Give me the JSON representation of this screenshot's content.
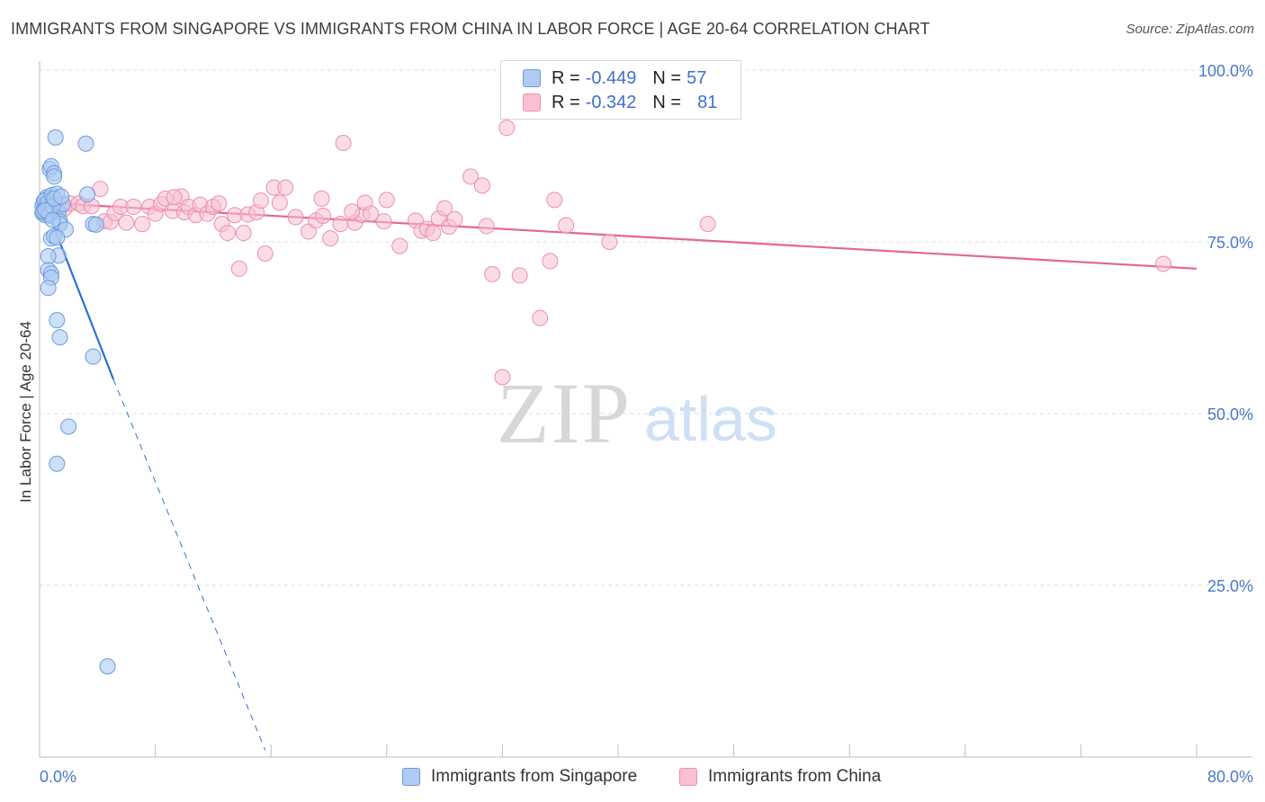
{
  "header": {
    "title": "IMMIGRANTS FROM SINGAPORE VS IMMIGRANTS FROM CHINA IN LABOR FORCE | AGE 20-64 CORRELATION CHART",
    "source": "Source: ZipAtlas.com"
  },
  "watermark": {
    "zip": "ZIP",
    "atlas": "atlas"
  },
  "legend": {
    "singapore": {
      "r_label": "R =",
      "r_value": "-0.449",
      "n_label": "N =",
      "n_value": "57"
    },
    "china": {
      "r_label": "R =",
      "r_value": "-0.342",
      "n_label": "N =",
      "n_value": "81"
    }
  },
  "colors": {
    "singapore_fill": "#aecbf2",
    "singapore_stroke": "#6c9ae0",
    "singapore_line": "#2f6fd6",
    "china_fill": "#f8c0d2",
    "china_stroke": "#ec8fae",
    "china_line": "#e4678f",
    "axis_text": "#4a78cc",
    "grid": "#dcdcdc"
  },
  "chart_data": {
    "type": "scatter",
    "title": "IMMIGRANTS FROM SINGAPORE VS IMMIGRANTS FROM CHINA IN LABOR FORCE | AGE 20-64 CORRELATION CHART",
    "xlabel": "",
    "ylabel": "In Labor Force | Age 20-64",
    "xlim": [
      0,
      80
    ],
    "ylim": [
      0,
      100
    ],
    "x_tick_labels": [
      {
        "value": 0,
        "label": "0.0%"
      },
      {
        "value": 80,
        "label": "80.0%"
      }
    ],
    "y_tick_labels": [
      {
        "value": 100,
        "label": "100.0%"
      },
      {
        "value": 75,
        "label": "75.0%"
      },
      {
        "value": 50,
        "label": "50.0%"
      },
      {
        "value": 25,
        "label": "25.0%"
      }
    ],
    "series": [
      {
        "name": "Immigrants from Singapore",
        "r": -0.449,
        "n": 57,
        "trend_solid": [
          [
            0.2,
            81.4
          ],
          [
            5.1,
            55.0
          ]
        ],
        "trend_dashed": [
          [
            5.1,
            55.0
          ],
          [
            15.6,
            1.0
          ]
        ],
        "points": [
          [
            0.3,
            79.8
          ],
          [
            0.4,
            80.5
          ],
          [
            0.2,
            79.2
          ],
          [
            0.5,
            81.2
          ],
          [
            0.6,
            80.1
          ],
          [
            0.3,
            80.9
          ],
          [
            0.7,
            79.5
          ],
          [
            0.4,
            78.9
          ],
          [
            0.8,
            80.3
          ],
          [
            0.5,
            81.5
          ],
          [
            0.9,
            79.9
          ],
          [
            1.0,
            80.6
          ],
          [
            0.6,
            79.1
          ],
          [
            0.2,
            80.2
          ],
          [
            1.1,
            79.7
          ],
          [
            0.35,
            81.0
          ],
          [
            0.75,
            78.8
          ],
          [
            0.45,
            80.0
          ],
          [
            0.25,
            79.4
          ],
          [
            0.55,
            80.7
          ],
          [
            0.85,
            81.8
          ],
          [
            1.2,
            82.0
          ],
          [
            1.3,
            79.3
          ],
          [
            0.65,
            79.0
          ],
          [
            1.6,
            80.5
          ],
          [
            0.9,
            80.2
          ],
          [
            0.4,
            79.6
          ],
          [
            1.0,
            81.3
          ],
          [
            1.5,
            81.6
          ],
          [
            1.4,
            78.0
          ],
          [
            0.7,
            85.6
          ],
          [
            0.8,
            86.0
          ],
          [
            1.0,
            85.0
          ],
          [
            1.0,
            84.5
          ],
          [
            1.1,
            90.2
          ],
          [
            3.2,
            89.3
          ],
          [
            3.3,
            81.9
          ],
          [
            3.7,
            77.6
          ],
          [
            3.9,
            77.5
          ],
          [
            1.4,
            77.6
          ],
          [
            1.8,
            76.8
          ],
          [
            0.8,
            75.5
          ],
          [
            1.0,
            75.8
          ],
          [
            1.2,
            75.6
          ],
          [
            1.3,
            73.0
          ],
          [
            0.6,
            72.9
          ],
          [
            0.6,
            70.9
          ],
          [
            0.8,
            70.4
          ],
          [
            0.8,
            69.8
          ],
          [
            0.6,
            68.3
          ],
          [
            1.2,
            63.6
          ],
          [
            1.4,
            61.1
          ],
          [
            3.7,
            58.3
          ],
          [
            2.0,
            48.1
          ],
          [
            1.2,
            42.7
          ],
          [
            4.7,
            13.2
          ],
          [
            0.9,
            78.2
          ]
        ]
      },
      {
        "name": "Immigrants from China",
        "r": -0.342,
        "n": 81,
        "trend_solid": [
          [
            0.3,
            80.7
          ],
          [
            80.0,
            71.1
          ]
        ],
        "points": [
          [
            0.3,
            80.2
          ],
          [
            0.6,
            80.4
          ],
          [
            0.9,
            80.7
          ],
          [
            1.3,
            80.1
          ],
          [
            1.7,
            79.8
          ],
          [
            2.1,
            80.6
          ],
          [
            2.7,
            80.6
          ],
          [
            3.0,
            80.2
          ],
          [
            3.6,
            80.2
          ],
          [
            4.2,
            82.7
          ],
          [
            4.5,
            78.0
          ],
          [
            4.9,
            77.9
          ],
          [
            5.2,
            79.2
          ],
          [
            5.6,
            80.1
          ],
          [
            6.0,
            77.8
          ],
          [
            6.5,
            80.1
          ],
          [
            7.1,
            77.6
          ],
          [
            7.6,
            80.1
          ],
          [
            8.0,
            79.1
          ],
          [
            8.4,
            80.5
          ],
          [
            8.7,
            81.3
          ],
          [
            9.2,
            79.5
          ],
          [
            9.8,
            81.6
          ],
          [
            10.0,
            79.3
          ],
          [
            10.3,
            80.1
          ],
          [
            10.8,
            78.9
          ],
          [
            11.1,
            80.4
          ],
          [
            11.6,
            79.1
          ],
          [
            12.0,
            80.1
          ],
          [
            12.6,
            77.6
          ],
          [
            12.4,
            80.6
          ],
          [
            13.0,
            76.3
          ],
          [
            13.5,
            78.9
          ],
          [
            14.1,
            76.3
          ],
          [
            14.4,
            79.0
          ],
          [
            15.0,
            79.3
          ],
          [
            15.6,
            73.3
          ],
          [
            13.8,
            71.1
          ],
          [
            16.2,
            82.9
          ],
          [
            16.6,
            80.7
          ],
          [
            17.0,
            82.9
          ],
          [
            17.7,
            78.6
          ],
          [
            18.6,
            76.5
          ],
          [
            19.1,
            78.1
          ],
          [
            19.5,
            81.3
          ],
          [
            20.1,
            75.5
          ],
          [
            20.8,
            77.6
          ],
          [
            21.8,
            77.8
          ],
          [
            22.3,
            78.9
          ],
          [
            22.5,
            80.7
          ],
          [
            22.9,
            79.1
          ],
          [
            23.8,
            78.0
          ],
          [
            24.9,
            74.4
          ],
          [
            26.0,
            78.1
          ],
          [
            26.4,
            76.6
          ],
          [
            26.8,
            76.9
          ],
          [
            27.2,
            76.3
          ],
          [
            27.6,
            78.4
          ],
          [
            28.0,
            79.9
          ],
          [
            28.3,
            77.2
          ],
          [
            28.7,
            78.3
          ],
          [
            29.8,
            84.5
          ],
          [
            30.6,
            83.2
          ],
          [
            30.9,
            77.3
          ],
          [
            31.3,
            70.3
          ],
          [
            32.3,
            91.6
          ],
          [
            33.2,
            70.1
          ],
          [
            34.6,
            63.9
          ],
          [
            35.3,
            72.2
          ],
          [
            35.6,
            81.1
          ],
          [
            36.4,
            77.4
          ],
          [
            39.4,
            75.0
          ],
          [
            46.2,
            77.6
          ],
          [
            77.7,
            71.8
          ],
          [
            32.0,
            55.3
          ],
          [
            21.0,
            89.4
          ],
          [
            19.6,
            78.8
          ],
          [
            9.3,
            81.5
          ],
          [
            24.0,
            81.1
          ],
          [
            21.6,
            79.4
          ],
          [
            15.3,
            81.0
          ]
        ]
      }
    ],
    "legend_position": "top-center",
    "grid": true
  },
  "bottom_legend": {
    "singapore_label": "Immigrants from Singapore",
    "china_label": "Immigrants from China"
  }
}
